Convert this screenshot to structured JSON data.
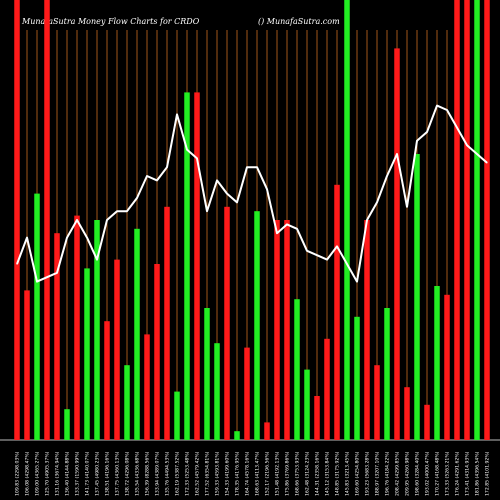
{
  "header": {
    "left_title": "MunafaSutra  Money Flow  Charts for CRDO",
    "right_title": "() MunafaSutra.com"
  },
  "colors": {
    "background": "#000000",
    "grid": "#a0561a",
    "up": "#22ee22",
    "down": "#ff1a1a",
    "line": "#ffffff",
    "baseline": "#bbbbbb"
  },
  "chart_data": {
    "type": "bar",
    "title": "MunafaSutra  Money Flow  Charts for CRDO",
    "ylim": [
      0,
      100
    ],
    "grid": true,
    "categories": [
      "109.83 (2298.03%)",
      "106.08 (4298.47%)",
      "109.00 (4365.27%)",
      "125.70 (4905.37%)",
      "131.16 (3674.94%)",
      "136.40 (4144.88%)",
      "133.37 (1590.99%)",
      "141.73 (4140.07%)",
      "137.45 (4980.23%)",
      "138.51 (4196.16%)",
      "137.75 (4360.13%)",
      "138.72 (4296.08%)",
      "135.54 (4336.68%)",
      "156.39 (8288.56%)",
      "133.94 (4389.07%)",
      "135.76 (4494.53%)",
      "162.19 (5387.52%)",
      "172.33 (5253.48%)",
      "162.52 (4579.42%)",
      "177.52 (6354.81%)",
      "159.33 (4593.81%)",
      "154.33 (4199.60%)",
      "178.35 (4176.95%)",
      "164.74 (4578.16%)",
      "168.63 (4113.47%)",
      "152.17 (2196.56%)",
      "151.48 (4192.13%)",
      "175.86 (3769.86%)",
      "168.66 (3753.93%)",
      "162.48 (3124.23%)",
      "144.31 (2358.16%)",
      "145.12 (3153.84%)",
      "148.85 (3175.92%)",
      "145.83 (3213.45%)",
      "169.60 (4254.80%)",
      "193.23 (5683.28%)",
      "188.97 (3207.10%)",
      "196.76 (4184.22%)",
      "208.42 (4299.85%)",
      "209.95 (4260.98%)",
      "198.60 (3284.40%)",
      "193.02 (4000.47%)",
      "170.27 (4168.48%)",
      "173.33 (5263.21%)",
      "176.24 (4291.62%)",
      "173.41 (4314.93%)",
      "181.86 (4396.54%)",
      "172.85 (4101.92%)"
    ],
    "series": [
      {
        "kind": "bars",
        "colors": [
          "r",
          "r",
          "g",
          "r",
          "r",
          "g",
          "r",
          "g",
          "g",
          "r",
          "r",
          "g",
          "g",
          "r",
          "r",
          "r",
          "g",
          "g",
          "r",
          "g",
          "g",
          "r",
          "g",
          "r",
          "g",
          "r",
          "r",
          "r",
          "g",
          "g",
          "r",
          "r",
          "r",
          "g",
          "g",
          "r",
          "r",
          "g",
          "r",
          "r",
          "g",
          "r",
          "g",
          "r",
          "r",
          "r",
          "g",
          "r"
        ],
        "values": [
          100,
          34,
          56,
          100,
          47,
          7,
          51,
          39,
          50,
          27,
          41,
          17,
          48,
          24,
          40,
          53,
          11,
          79,
          79,
          30,
          22,
          53,
          2,
          21,
          52,
          4,
          50,
          50,
          32,
          16,
          10,
          23,
          58,
          100,
          28,
          50,
          17,
          30,
          89,
          12,
          65,
          8,
          35,
          33,
          100,
          100,
          100,
          100
        ]
      },
      {
        "kind": "line",
        "values": [
          40,
          46,
          36,
          37,
          38,
          46,
          50,
          46,
          41,
          50,
          52,
          52,
          55,
          60,
          59,
          62,
          74,
          66,
          64,
          52,
          59,
          56,
          54,
          62,
          62,
          57,
          47,
          49,
          48,
          43,
          42,
          41,
          44,
          40,
          36,
          50,
          54,
          60,
          65,
          53,
          68,
          70,
          76,
          75,
          71,
          67,
          65,
          63
        ]
      }
    ]
  }
}
